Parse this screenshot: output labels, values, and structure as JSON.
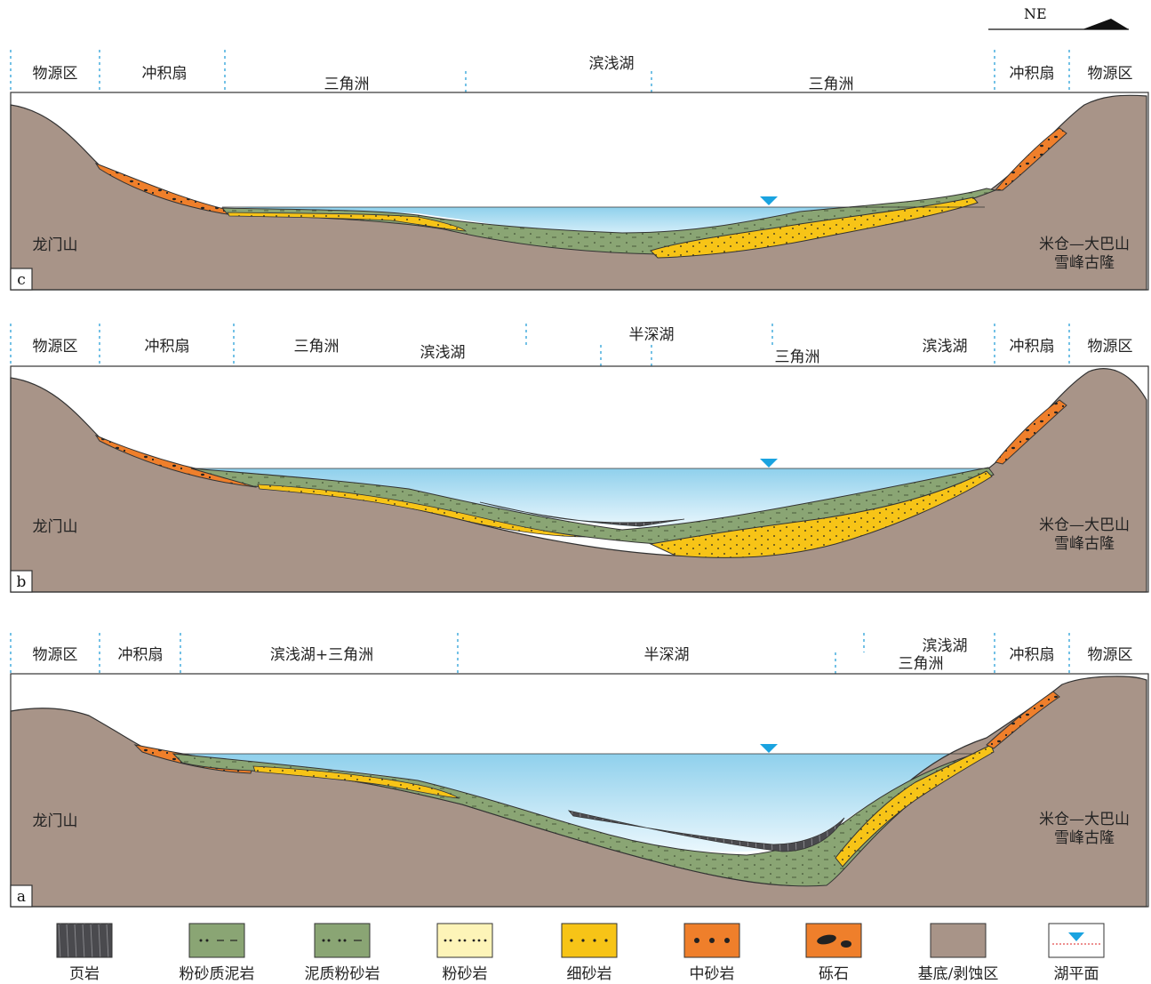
{
  "north_label": "NE",
  "panels": [
    {
      "id": "c",
      "tag": "c",
      "zones": [
        "物源区",
        "冲积扇",
        "三角洲",
        "滨浅湖",
        "三角洲",
        "冲积扇",
        "物源区"
      ],
      "left_label": "龙门山",
      "right_label_1": "米仓—大巴山",
      "right_label_2": "雪峰古隆"
    },
    {
      "id": "b",
      "tag": "b",
      "zones": [
        "物源区",
        "冲积扇",
        "三角洲",
        "滨浅湖",
        "半深湖",
        "三角洲",
        "滨浅湖",
        "冲积扇",
        "物源区"
      ],
      "left_label": "龙门山",
      "right_label_1": "米仓—大巴山",
      "right_label_2": "雪峰古隆"
    },
    {
      "id": "a",
      "tag": "a",
      "zones": [
        "物源区",
        "冲积扇",
        "滨浅湖+三角洲",
        "半深湖",
        "滨浅湖",
        "三角洲",
        "冲积扇",
        "物源区"
      ],
      "left_label": "龙门山",
      "right_label_1": "米仓—大巴山",
      "right_label_2": "雪峰古隆"
    }
  ],
  "legend": [
    {
      "key": "shale",
      "label": "页岩"
    },
    {
      "key": "silty-mudstone",
      "label": "粉砂质泥岩"
    },
    {
      "key": "muddy-siltstone",
      "label": "泥质粉砂岩"
    },
    {
      "key": "siltstone",
      "label": "粉砂岩"
    },
    {
      "key": "fine-sandstone",
      "label": "细砂岩"
    },
    {
      "key": "medium-sandstone",
      "label": "中砂岩"
    },
    {
      "key": "gravel",
      "label": "砾石"
    },
    {
      "key": "basement",
      "label": "基底/剥蚀区"
    },
    {
      "key": "lake-level",
      "label": "湖平面"
    }
  ],
  "colors": {
    "basement": "#a89488",
    "green": "#8aa574",
    "yellow": "#f7c417",
    "orange": "#ef7f2b",
    "shale": "#4a4a4e",
    "siltstone": "#fdf4b8",
    "water_top": "#8fd0ec",
    "water_bottom": "#e8f6fc",
    "lake_marker": "#1aa3e0",
    "divider": "#2aa0d8"
  }
}
